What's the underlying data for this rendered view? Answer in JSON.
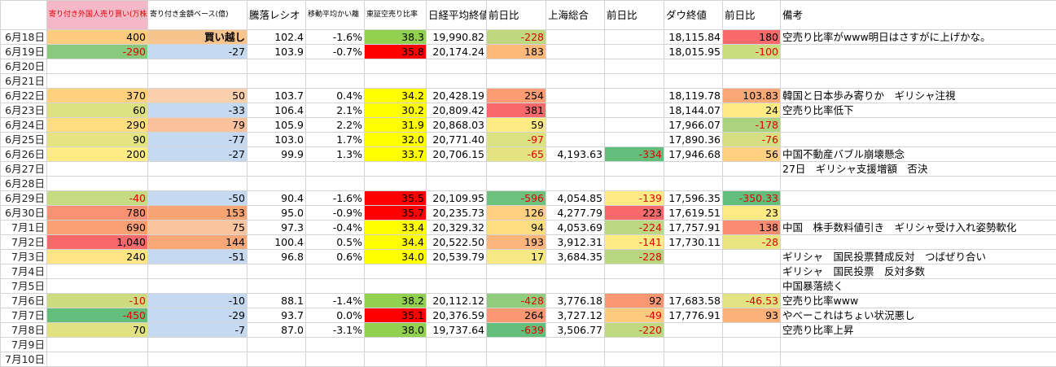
{
  "table": {
    "header": [
      null,
      "寄り付き外国人売り買い(万株)",
      "寄り付き金額ベース(億)",
      "騰落レシオ",
      "移動平均かい離",
      "東証空売り比率",
      "日経平均終値",
      "前日比",
      "上海総合",
      "前日比",
      "ダウ終値",
      "前日比",
      "備考"
    ],
    "rows": [
      [
        "6月18日",
        "400",
        "買い越し",
        "102.4",
        "-1.6%",
        "38.3",
        "19,990.82",
        "-228",
        null,
        null,
        "18,115.84",
        "180",
        "空売り比率がwww明日はさすがに上げかな。"
      ],
      [
        "6月19日",
        "-290",
        "-27",
        "103.9",
        "-0.7%",
        "35.8",
        "20,174.24",
        "183",
        null,
        null,
        "18,015.95",
        "-100",
        null
      ],
      [
        "6月20日",
        null,
        null,
        null,
        null,
        null,
        null,
        null,
        null,
        null,
        null,
        null,
        null
      ],
      [
        "6月21日",
        null,
        null,
        null,
        null,
        null,
        null,
        null,
        null,
        null,
        null,
        null,
        null
      ],
      [
        "6月22日",
        "370",
        "50",
        "103.7",
        "0.4%",
        "34.2",
        "20,428.19",
        "254",
        null,
        null,
        "18,119.78",
        "103.83",
        "韓国と日本歩み寄りか　ギリシャ注視"
      ],
      [
        "6月23日",
        "60",
        "-33",
        "106.4",
        "2.1%",
        "30.2",
        "20,809.42",
        "381",
        null,
        null,
        "18,144.07",
        "24",
        "空売り比率低下"
      ],
      [
        "6月24日",
        "290",
        "79",
        "105.9",
        "2.2%",
        "31.9",
        "20,868.03",
        "59",
        null,
        null,
        "17,966.07",
        "-178",
        null
      ],
      [
        "6月25日",
        "90",
        "-77",
        "103.0",
        "1.7%",
        "32.0",
        "20,771.40",
        "-97",
        null,
        null,
        "17,890.36",
        "-76",
        null
      ],
      [
        "6月26日",
        "200",
        "-27",
        "99.9",
        "1.3%",
        "33.7",
        "20,706.15",
        "-65",
        "4,193.63",
        "-334",
        "17,946.68",
        "56",
        "中国不動産バブル崩壊懸念"
      ],
      [
        "6月27日",
        null,
        null,
        null,
        null,
        null,
        null,
        null,
        null,
        null,
        null,
        null,
        "27日　ギリシャ支援増額　否決"
      ],
      [
        "6月28日",
        null,
        null,
        null,
        null,
        null,
        null,
        null,
        null,
        null,
        null,
        null,
        null
      ],
      [
        "6月29日",
        "-40",
        "-50",
        "90.4",
        "-1.6%",
        "35.5",
        "20,109.95",
        "-596",
        "4,054.85",
        "-139",
        "17,596.35",
        "-350.33",
        null
      ],
      [
        "6月30日",
        "780",
        "153",
        "95.0",
        "-0.9%",
        "35.7",
        "20,235.73",
        "126",
        "4,277.79",
        "223",
        "17,619.51",
        "23",
        null
      ],
      [
        "7月1日",
        "690",
        "75",
        "97.3",
        "-0.4%",
        "33.4",
        "20,329.32",
        "94",
        "4,053.69",
        "-224",
        "17,757.91",
        "138",
        "中国　株手数料値引き　ギリシャ受け入れ姿勢軟化"
      ],
      [
        "7月2日",
        "1,040",
        "144",
        "100.4",
        "0.5%",
        "34.4",
        "20,522.50",
        "193",
        "3,912.31",
        "-141",
        "17,730.11",
        "-28",
        null
      ],
      [
        "7月3日",
        "240",
        "-51",
        "96.8",
        "0.6%",
        "34.0",
        "20,539.79",
        "17",
        "3,684.35",
        "-228",
        null,
        null,
        "ギリシャ　国民投票賛成反対　つばぜり合い"
      ],
      [
        "7月4日",
        null,
        null,
        null,
        null,
        null,
        null,
        null,
        null,
        null,
        null,
        null,
        "ギリシャ　国民投票　反対多数"
      ],
      [
        "7月5日",
        null,
        null,
        null,
        null,
        null,
        null,
        null,
        null,
        null,
        null,
        null,
        "中国暴落続く"
      ],
      [
        "7月6日",
        "-10",
        "-10",
        "88.1",
        "-1.4%",
        "38.2",
        "20,112.12",
        "-428",
        "3,776.18",
        "92",
        "17,683.58",
        "-46.53",
        "空売り比率www"
      ],
      [
        "7月7日",
        "-450",
        "-29",
        "93.7",
        "0.0%",
        "35.1",
        "20,376.59",
        "264",
        "3,727.12",
        "-49",
        "17,776.91",
        "93",
        "やべーこれはちょい状況悪し"
      ],
      [
        "7月8日",
        "70",
        "-7",
        "87.0",
        "-3.1%",
        "38.0",
        "19,737.64",
        "-639",
        "3,506.77",
        "-220",
        null,
        null,
        "空売り比率上昇"
      ],
      [
        "7月9日",
        null,
        null,
        null,
        null,
        null,
        null,
        null,
        null,
        null,
        null,
        null,
        null
      ],
      [
        "7月10日",
        null,
        null,
        null,
        null,
        null,
        null,
        null,
        null,
        null,
        null,
        null,
        null
      ]
    ]
  }
}
